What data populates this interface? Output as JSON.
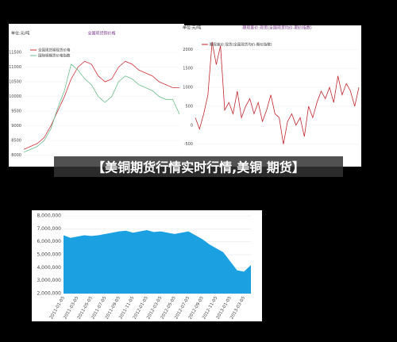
{
  "banner": "【美铜期货行情实时行情,美铜 期货】",
  "chart_data": [
    {
      "type": "line",
      "unit": "单位:元/吨",
      "title": "全国现货铜价格",
      "ylim": [
        7800,
        11800
      ],
      "yticks": [
        8000,
        8500,
        9000,
        9500,
        10000,
        10500,
        11000,
        11500
      ],
      "series": [
        {
          "name": "全国现货铜现货价格",
          "color": "#d0333c",
          "values": [
            8200,
            8300,
            8400,
            8600,
            9000,
            9500,
            10000,
            10600,
            11000,
            11200,
            11100,
            10700,
            10500,
            10600,
            11000,
            11200,
            11100,
            10900,
            10800,
            10700,
            10500,
            10400,
            10300,
            10300
          ]
        },
        {
          "name": "国际铜期货价格指数",
          "color": "#6fbf8f",
          "values": [
            8100,
            8200,
            8300,
            8500,
            8900,
            9600,
            10200,
            11100,
            10900,
            10600,
            10400,
            10000,
            9800,
            10000,
            10500,
            10700,
            10600,
            10400,
            10300,
            10200,
            10000,
            9900,
            9900,
            9400
          ]
        }
      ]
    },
    {
      "type": "line",
      "unit": "单位:元/吨",
      "title": "期现差价:现货(全国现货均价-期价指数)",
      "ylim": [
        -800,
        2300
      ],
      "yticks": [
        -500,
        0,
        500,
        1000,
        1500,
        2000
      ],
      "series": [
        {
          "name": "期现差价:现货(全国现货均价-期价指数)",
          "color": "#c0272d",
          "values": [
            200,
            -100,
            300,
            800,
            2200,
            1600,
            2100,
            400,
            600,
            300,
            900,
            200,
            500,
            700,
            300,
            600,
            100,
            400,
            800,
            300,
            200,
            -500,
            100,
            300,
            0,
            200,
            -300,
            500,
            200,
            600,
            900,
            700,
            1000,
            600,
            1300,
            800,
            1100,
            900,
            500,
            1000
          ]
        }
      ]
    },
    {
      "type": "area",
      "color": "#1ba1e2",
      "ylim": [
        2000000,
        8000000
      ],
      "yticks": [
        {
          "value": 2000000,
          "label": "2,000,000"
        },
        {
          "value": 3000000,
          "label": "3,000,000"
        },
        {
          "value": 4000000,
          "label": "4,000,000"
        },
        {
          "value": 5000000,
          "label": "5,000,000"
        },
        {
          "value": 6000000,
          "label": "6,000,000"
        },
        {
          "value": 7000000,
          "label": "7,000,000"
        },
        {
          "value": 8000000,
          "label": "8,000,000"
        }
      ],
      "categories": [
        "2011-01-05",
        null,
        "2011-03-05",
        null,
        "2011-05-05",
        null,
        "2011-07-05",
        null,
        "2011-09-05",
        null,
        "2011-11-05",
        null,
        "2012-01-05",
        null,
        "2012-03-05",
        null,
        "2012-05-05",
        null,
        "2012-07-05",
        null,
        "2012-09-05",
        null,
        "2012-11-05",
        null,
        "2013-01-05",
        null,
        "2013-03-05",
        null
      ],
      "values": [
        6500000,
        6300000,
        6400000,
        6500000,
        6450000,
        6500000,
        6600000,
        6700000,
        6800000,
        6850000,
        6700000,
        6800000,
        6900000,
        6750000,
        6800000,
        6700000,
        6600000,
        6700000,
        6800000,
        6500000,
        6200000,
        5800000,
        5500000,
        5200000,
        4500000,
        3800000,
        3700000,
        4200000
      ]
    }
  ]
}
